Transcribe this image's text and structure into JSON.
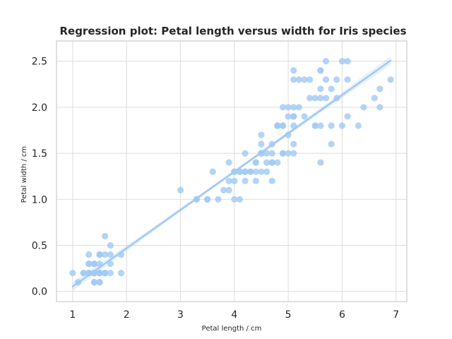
{
  "chart_data": {
    "type": "scatter",
    "title": "Regression plot: Petal length versus width for Iris species",
    "xlabel": "Petal length / cm",
    "ylabel": "Petal width / cm",
    "xlim": [
      0.7,
      7.2
    ],
    "ylim": [
      -0.11,
      2.72
    ],
    "xticks": [
      1,
      2,
      3,
      4,
      5,
      6,
      7
    ],
    "yticks": [
      0.0,
      0.5,
      1.0,
      1.5,
      2.0,
      2.5
    ],
    "xtick_labels": [
      "1",
      "2",
      "3",
      "4",
      "5",
      "6",
      "7"
    ],
    "ytick_labels": [
      "0.0",
      "0.5",
      "1.0",
      "1.5",
      "2.0",
      "2.5"
    ],
    "grid": true,
    "color": "#a1c9f4",
    "series": [
      {
        "points": [
          [
            1.4,
            0.2
          ],
          [
            1.4,
            0.2
          ],
          [
            1.3,
            0.2
          ],
          [
            1.5,
            0.2
          ],
          [
            1.4,
            0.2
          ],
          [
            1.7,
            0.4
          ],
          [
            1.4,
            0.3
          ],
          [
            1.5,
            0.2
          ],
          [
            1.4,
            0.2
          ],
          [
            1.5,
            0.1
          ],
          [
            1.5,
            0.2
          ],
          [
            1.6,
            0.2
          ],
          [
            1.4,
            0.1
          ],
          [
            1.1,
            0.1
          ],
          [
            1.2,
            0.2
          ],
          [
            1.5,
            0.4
          ],
          [
            1.3,
            0.4
          ],
          [
            1.4,
            0.3
          ],
          [
            1.7,
            0.3
          ],
          [
            1.5,
            0.3
          ],
          [
            1.7,
            0.2
          ],
          [
            1.5,
            0.4
          ],
          [
            1.0,
            0.2
          ],
          [
            1.7,
            0.5
          ],
          [
            1.9,
            0.2
          ],
          [
            1.6,
            0.2
          ],
          [
            1.6,
            0.4
          ],
          [
            1.5,
            0.2
          ],
          [
            1.4,
            0.2
          ],
          [
            1.6,
            0.2
          ],
          [
            1.6,
            0.2
          ],
          [
            1.5,
            0.4
          ],
          [
            1.5,
            0.1
          ],
          [
            1.4,
            0.2
          ],
          [
            1.5,
            0.2
          ],
          [
            1.2,
            0.2
          ],
          [
            1.3,
            0.2
          ],
          [
            1.4,
            0.1
          ],
          [
            1.3,
            0.2
          ],
          [
            1.5,
            0.2
          ],
          [
            1.3,
            0.3
          ],
          [
            1.3,
            0.3
          ],
          [
            1.3,
            0.2
          ],
          [
            1.6,
            0.6
          ],
          [
            1.9,
            0.4
          ],
          [
            1.4,
            0.3
          ],
          [
            1.6,
            0.2
          ],
          [
            1.4,
            0.2
          ],
          [
            1.5,
            0.2
          ],
          [
            1.4,
            0.2
          ],
          [
            4.7,
            1.4
          ],
          [
            4.5,
            1.5
          ],
          [
            4.9,
            1.5
          ],
          [
            4.0,
            1.3
          ],
          [
            4.6,
            1.5
          ],
          [
            4.5,
            1.3
          ],
          [
            4.7,
            1.6
          ],
          [
            3.3,
            1.0
          ],
          [
            4.6,
            1.3
          ],
          [
            3.9,
            1.4
          ],
          [
            3.5,
            1.0
          ],
          [
            4.2,
            1.5
          ],
          [
            4.0,
            1.0
          ],
          [
            4.7,
            1.4
          ],
          [
            3.6,
            1.3
          ],
          [
            4.4,
            1.4
          ],
          [
            4.5,
            1.5
          ],
          [
            4.1,
            1.0
          ],
          [
            4.5,
            1.5
          ],
          [
            3.9,
            1.1
          ],
          [
            4.8,
            1.8
          ],
          [
            4.0,
            1.3
          ],
          [
            4.9,
            1.5
          ],
          [
            4.7,
            1.2
          ],
          [
            4.3,
            1.3
          ],
          [
            4.4,
            1.4
          ],
          [
            4.8,
            1.4
          ],
          [
            5.0,
            1.7
          ],
          [
            4.5,
            1.5
          ],
          [
            3.5,
            1.0
          ],
          [
            3.8,
            1.1
          ],
          [
            3.7,
            1.0
          ],
          [
            3.9,
            1.2
          ],
          [
            5.1,
            1.6
          ],
          [
            4.5,
            1.5
          ],
          [
            4.5,
            1.6
          ],
          [
            4.7,
            1.5
          ],
          [
            4.4,
            1.3
          ],
          [
            4.1,
            1.3
          ],
          [
            4.0,
            1.3
          ],
          [
            4.4,
            1.2
          ],
          [
            4.6,
            1.4
          ],
          [
            4.0,
            1.2
          ],
          [
            3.3,
            1.0
          ],
          [
            4.2,
            1.3
          ],
          [
            4.2,
            1.2
          ],
          [
            4.2,
            1.3
          ],
          [
            4.3,
            1.3
          ],
          [
            3.0,
            1.1
          ],
          [
            4.1,
            1.3
          ],
          [
            6.0,
            2.5
          ],
          [
            5.1,
            1.9
          ],
          [
            5.9,
            2.1
          ],
          [
            5.6,
            1.8
          ],
          [
            5.8,
            2.2
          ],
          [
            6.6,
            2.1
          ],
          [
            4.5,
            1.7
          ],
          [
            6.3,
            1.8
          ],
          [
            5.8,
            1.8
          ],
          [
            6.1,
            2.5
          ],
          [
            5.1,
            2.0
          ],
          [
            5.3,
            1.9
          ],
          [
            5.5,
            2.1
          ],
          [
            5.0,
            2.0
          ],
          [
            5.1,
            2.4
          ],
          [
            5.3,
            2.3
          ],
          [
            5.5,
            1.8
          ],
          [
            6.7,
            2.2
          ],
          [
            6.9,
            2.3
          ],
          [
            5.0,
            1.5
          ],
          [
            5.7,
            2.3
          ],
          [
            4.9,
            2.0
          ],
          [
            6.7,
            2.0
          ],
          [
            4.9,
            1.8
          ],
          [
            5.7,
            2.1
          ],
          [
            6.0,
            1.8
          ],
          [
            4.8,
            1.8
          ],
          [
            4.9,
            1.8
          ],
          [
            5.6,
            2.1
          ],
          [
            5.8,
            1.6
          ],
          [
            6.1,
            1.9
          ],
          [
            6.4,
            2.0
          ],
          [
            5.6,
            2.2
          ],
          [
            5.1,
            1.5
          ],
          [
            5.6,
            1.4
          ],
          [
            6.1,
            2.3
          ],
          [
            5.6,
            2.4
          ],
          [
            5.5,
            1.8
          ],
          [
            4.8,
            1.8
          ],
          [
            5.4,
            2.1
          ],
          [
            5.6,
            2.4
          ],
          [
            5.1,
            2.3
          ],
          [
            5.1,
            1.9
          ],
          [
            5.9,
            2.3
          ],
          [
            5.7,
            2.5
          ],
          [
            5.2,
            2.3
          ],
          [
            5.0,
            1.9
          ],
          [
            5.2,
            2.0
          ],
          [
            5.4,
            2.3
          ],
          [
            5.1,
            1.8
          ]
        ]
      }
    ],
    "regression": {
      "intercept": -0.363,
      "slope": 0.416,
      "x_range": [
        1.0,
        6.9
      ]
    }
  }
}
